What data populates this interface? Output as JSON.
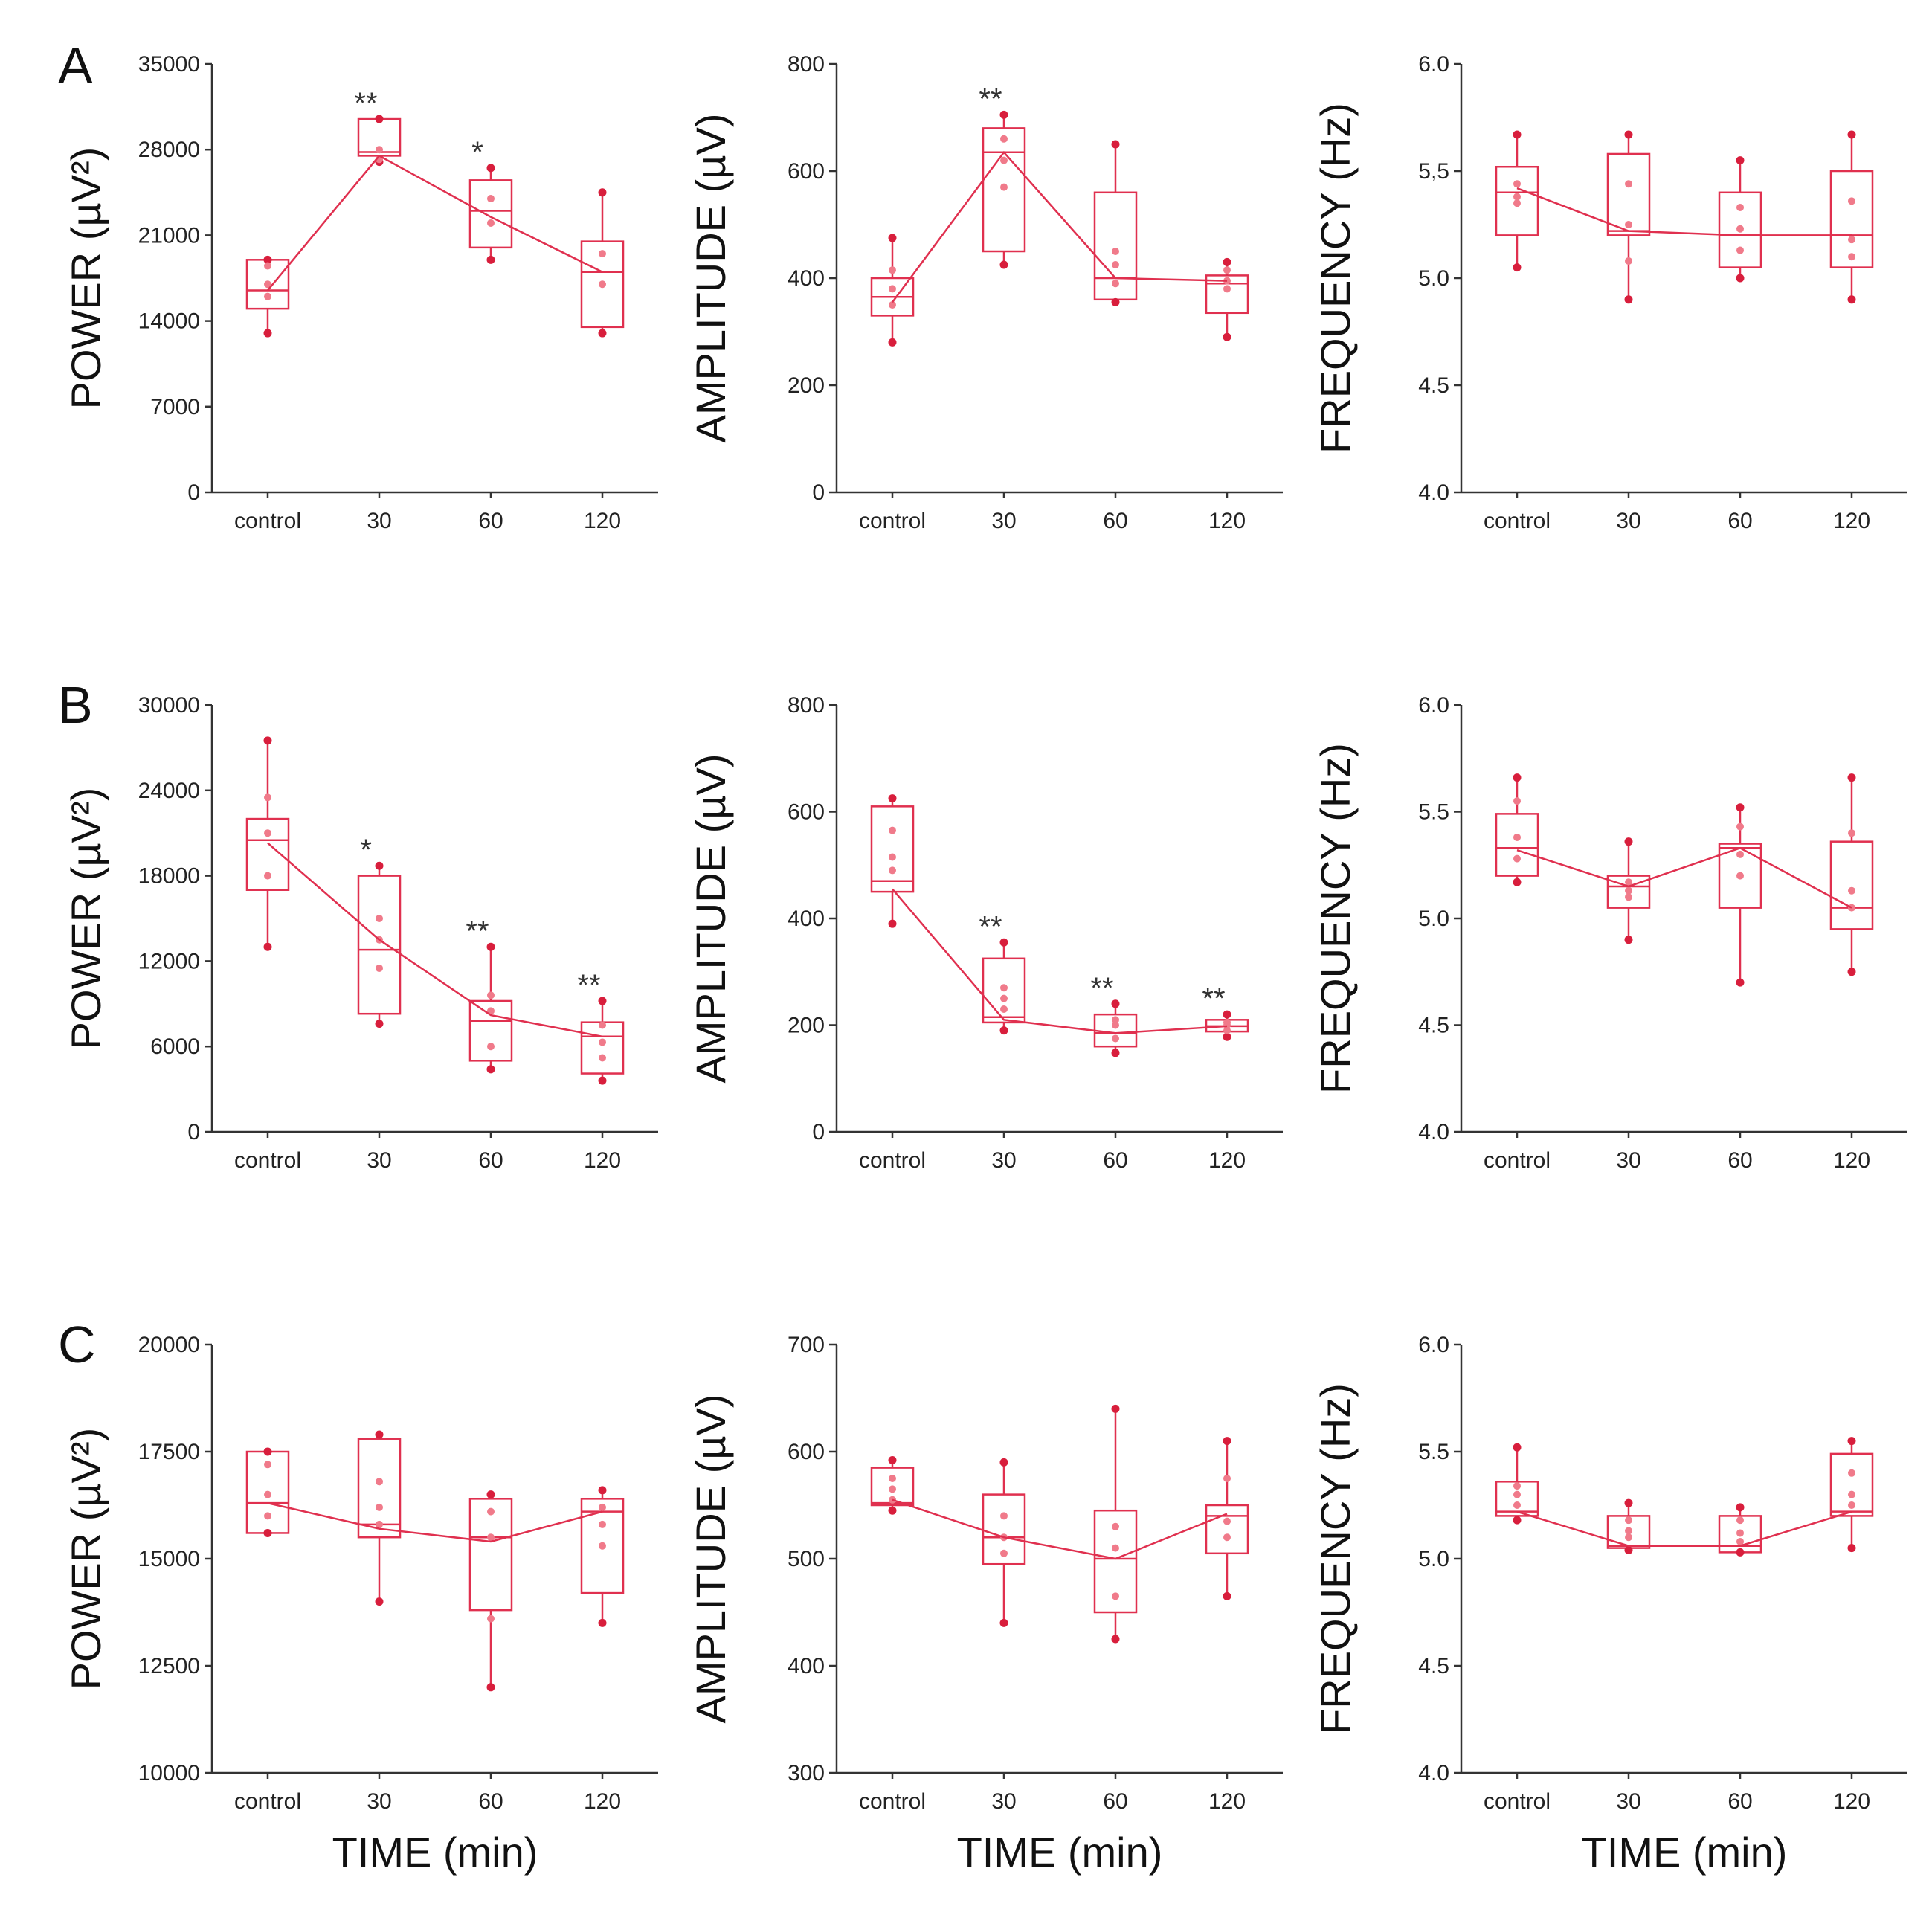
{
  "colors": {
    "accent": "#e0304f",
    "point": "#d81e3c",
    "inner_point": "#f07a8a",
    "axis": "#333333"
  },
  "figure": {
    "x_axis_title": "TIME   (min)",
    "panel_letters": [
      "A",
      "B",
      "C"
    ]
  },
  "chart_data": [
    {
      "type": "box",
      "row": "A",
      "title": "",
      "ylabel": "POWER (µV²)",
      "xlabel": "",
      "categories": [
        "control",
        "30",
        "60",
        "120"
      ],
      "ylim": [
        0,
        35000
      ],
      "yticks": [
        "0",
        "7000",
        "14000",
        "21000",
        "28000",
        "35000"
      ],
      "boxes": [
        {
          "q1": 15000,
          "median": 16500,
          "q3": 19000,
          "whisker_low": 13000,
          "whisker_high": 19000,
          "points": [
            17000,
            18500,
            16000
          ],
          "sig": ""
        },
        {
          "q1": 27500,
          "median": 27800,
          "q3": 30500,
          "whisker_low": 27000,
          "whisker_high": 30500,
          "points": [
            27200,
            28000
          ],
          "sig": "**"
        },
        {
          "q1": 20000,
          "median": 23000,
          "q3": 25500,
          "whisker_low": 19000,
          "whisker_high": 26500,
          "points": [
            22000,
            24000
          ],
          "sig": "*"
        },
        {
          "q1": 13500,
          "median": 18000,
          "q3": 20500,
          "whisker_low": 13000,
          "whisker_high": 24500,
          "points": [
            17000,
            19500
          ],
          "sig": ""
        }
      ],
      "line": [
        16500,
        27500,
        22500,
        18000
      ]
    },
    {
      "type": "box",
      "row": "A",
      "title": "",
      "ylabel": "AMPLITUDE (µV)",
      "xlabel": "",
      "categories": [
        "control",
        "30",
        "60",
        "120"
      ],
      "ylim": [
        0,
        800
      ],
      "yticks": [
        "0",
        "200",
        "400",
        "600",
        "800"
      ],
      "boxes": [
        {
          "q1": 330,
          "median": 365,
          "q3": 400,
          "whisker_low": 280,
          "whisker_high": 475,
          "points": [
            350,
            380,
            415
          ],
          "sig": ""
        },
        {
          "q1": 450,
          "median": 635,
          "q3": 680,
          "whisker_low": 425,
          "whisker_high": 705,
          "points": [
            570,
            620,
            660
          ],
          "sig": "**"
        },
        {
          "q1": 360,
          "median": 400,
          "q3": 560,
          "whisker_low": 355,
          "whisker_high": 650,
          "points": [
            390,
            425,
            450
          ],
          "sig": ""
        },
        {
          "q1": 335,
          "median": 390,
          "q3": 405,
          "whisker_low": 290,
          "whisker_high": 430,
          "points": [
            380,
            395,
            415
          ],
          "sig": ""
        }
      ],
      "line": [
        355,
        635,
        400,
        395
      ]
    },
    {
      "type": "box",
      "row": "A",
      "title": "",
      "ylabel": "FREQUENCY (Hz)",
      "xlabel": "",
      "categories": [
        "control",
        "30",
        "60",
        "120"
      ],
      "ylim": [
        4.0,
        6.0
      ],
      "yticks": [
        "4.0",
        "4.5",
        "5.0",
        "5,5",
        "6.0"
      ],
      "boxes": [
        {
          "q1": 5.2,
          "median": 5.4,
          "q3": 5.52,
          "whisker_low": 5.05,
          "whisker_high": 5.67,
          "points": [
            5.35,
            5.38,
            5.44
          ],
          "sig": ""
        },
        {
          "q1": 5.2,
          "median": 5.22,
          "q3": 5.58,
          "whisker_low": 4.9,
          "whisker_high": 5.67,
          "points": [
            5.08,
            5.25,
            5.44
          ],
          "sig": ""
        },
        {
          "q1": 5.05,
          "median": 5.2,
          "q3": 5.4,
          "whisker_low": 5.0,
          "whisker_high": 5.55,
          "points": [
            5.13,
            5.23,
            5.33
          ],
          "sig": ""
        },
        {
          "q1": 5.05,
          "median": 5.2,
          "q3": 5.5,
          "whisker_low": 4.9,
          "whisker_high": 5.67,
          "points": [
            5.1,
            5.18,
            5.36
          ],
          "sig": ""
        }
      ],
      "line": [
        5.42,
        5.22,
        5.2,
        5.2
      ]
    },
    {
      "type": "box",
      "row": "B",
      "title": "",
      "ylabel": "POWER (µV²)",
      "xlabel": "",
      "categories": [
        "control",
        "30",
        "60",
        "120"
      ],
      "ylim": [
        0,
        30000
      ],
      "yticks": [
        "0",
        "6000",
        "12000",
        "18000",
        "24000",
        "30000"
      ],
      "boxes": [
        {
          "q1": 17000,
          "median": 20500,
          "q3": 22000,
          "whisker_low": 13000,
          "whisker_high": 27500,
          "points": [
            18000,
            21000,
            23500
          ],
          "sig": ""
        },
        {
          "q1": 8300,
          "median": 12800,
          "q3": 18000,
          "whisker_low": 7600,
          "whisker_high": 18700,
          "points": [
            11500,
            13500,
            15000
          ],
          "sig": "*"
        },
        {
          "q1": 5000,
          "median": 7800,
          "q3": 9200,
          "whisker_low": 4400,
          "whisker_high": 13000,
          "points": [
            6000,
            8500,
            9600
          ],
          "sig": "**"
        },
        {
          "q1": 4100,
          "median": 6700,
          "q3": 7700,
          "whisker_low": 3600,
          "whisker_high": 9200,
          "points": [
            5200,
            6300,
            7500
          ],
          "sig": "**"
        }
      ],
      "line": [
        20300,
        13500,
        8200,
        6700
      ]
    },
    {
      "type": "box",
      "row": "B",
      "title": "",
      "ylabel": "AMPLITUDE (µV)",
      "xlabel": "",
      "categories": [
        "control",
        "30",
        "60",
        "120"
      ],
      "ylim": [
        0,
        800
      ],
      "yticks": [
        "0",
        "200",
        "400",
        "600",
        "800"
      ],
      "boxes": [
        {
          "q1": 450,
          "median": 470,
          "q3": 610,
          "whisker_low": 390,
          "whisker_high": 625,
          "points": [
            490,
            565,
            515
          ],
          "sig": ""
        },
        {
          "q1": 205,
          "median": 215,
          "q3": 325,
          "whisker_low": 190,
          "whisker_high": 355,
          "points": [
            230,
            250,
            270
          ],
          "sig": "**"
        },
        {
          "q1": 160,
          "median": 185,
          "q3": 220,
          "whisker_low": 148,
          "whisker_high": 240,
          "points": [
            175,
            200,
            210
          ],
          "sig": "**"
        },
        {
          "q1": 188,
          "median": 198,
          "q3": 210,
          "whisker_low": 178,
          "whisker_high": 220,
          "points": [
            190,
            200,
            205
          ],
          "sig": "**"
        }
      ],
      "line": [
        455,
        210,
        185,
        198
      ]
    },
    {
      "type": "box",
      "row": "B",
      "title": "",
      "ylabel": "FREQUENCY (Hz)",
      "xlabel": "",
      "categories": [
        "control",
        "30",
        "60",
        "120"
      ],
      "ylim": [
        4.0,
        6.0
      ],
      "yticks": [
        "4.0",
        "4.5",
        "5.0",
        "5.5",
        "6.0"
      ],
      "boxes": [
        {
          "q1": 5.2,
          "median": 5.33,
          "q3": 5.49,
          "whisker_low": 5.17,
          "whisker_high": 5.66,
          "points": [
            5.28,
            5.38,
            5.55
          ],
          "sig": ""
        },
        {
          "q1": 5.05,
          "median": 5.15,
          "q3": 5.2,
          "whisker_low": 4.9,
          "whisker_high": 5.36,
          "points": [
            5.1,
            5.13,
            5.17
          ],
          "sig": ""
        },
        {
          "q1": 5.05,
          "median": 5.33,
          "q3": 5.35,
          "whisker_low": 4.7,
          "whisker_high": 5.52,
          "points": [
            5.2,
            5.3,
            5.43
          ],
          "sig": ""
        },
        {
          "q1": 4.95,
          "median": 5.05,
          "q3": 5.36,
          "whisker_low": 4.75,
          "whisker_high": 5.66,
          "points": [
            5.05,
            5.13,
            5.4
          ],
          "sig": ""
        }
      ],
      "line": [
        5.32,
        5.15,
        5.33,
        5.05
      ]
    },
    {
      "type": "box",
      "row": "C",
      "title": "",
      "ylabel": "POWER (µV²)",
      "xlabel": "TIME   (min)",
      "categories": [
        "control",
        "30",
        "60",
        "120"
      ],
      "ylim": [
        10000,
        20000
      ],
      "yticks": [
        "10000",
        "12500",
        "15000",
        "17500",
        "20000"
      ],
      "boxes": [
        {
          "q1": 15600,
          "median": 16300,
          "q3": 17500,
          "whisker_low": 15600,
          "whisker_high": 17500,
          "points": [
            16000,
            16500,
            17200
          ],
          "sig": ""
        },
        {
          "q1": 15500,
          "median": 15800,
          "q3": 17800,
          "whisker_low": 14000,
          "whisker_high": 17900,
          "points": [
            15800,
            16200,
            16800
          ],
          "sig": ""
        },
        {
          "q1": 13800,
          "median": 15500,
          "q3": 16400,
          "whisker_low": 12000,
          "whisker_high": 16500,
          "points": [
            13600,
            15500,
            16100
          ],
          "sig": ""
        },
        {
          "q1": 14200,
          "median": 16100,
          "q3": 16400,
          "whisker_low": 13500,
          "whisker_high": 16600,
          "points": [
            15300,
            15800,
            16200
          ],
          "sig": ""
        }
      ],
      "line": [
        16300,
        15700,
        15400,
        16100
      ]
    },
    {
      "type": "box",
      "row": "C",
      "title": "",
      "ylabel": "AMPLITUDE (µV)",
      "xlabel": "TIME   (min)",
      "categories": [
        "control",
        "30",
        "60",
        "120"
      ],
      "ylim": [
        300,
        700
      ],
      "yticks": [
        "300",
        "400",
        "500",
        "600",
        "700"
      ],
      "boxes": [
        {
          "q1": 550,
          "median": 552,
          "q3": 585,
          "whisker_low": 545,
          "whisker_high": 592,
          "points": [
            555,
            565,
            575
          ],
          "sig": ""
        },
        {
          "q1": 495,
          "median": 520,
          "q3": 560,
          "whisker_low": 440,
          "whisker_high": 590,
          "points": [
            505,
            520,
            540
          ],
          "sig": ""
        },
        {
          "q1": 450,
          "median": 500,
          "q3": 545,
          "whisker_low": 425,
          "whisker_high": 640,
          "points": [
            465,
            510,
            530
          ],
          "sig": ""
        },
        {
          "q1": 505,
          "median": 540,
          "q3": 550,
          "whisker_low": 465,
          "whisker_high": 610,
          "points": [
            520,
            535,
            575
          ],
          "sig": ""
        }
      ],
      "line": [
        555,
        520,
        500,
        542
      ]
    },
    {
      "type": "box",
      "row": "C",
      "title": "",
      "ylabel": "FREQUENCY (Hz)",
      "xlabel": "TIME   (min)",
      "categories": [
        "control",
        "30",
        "60",
        "120"
      ],
      "ylim": [
        4.0,
        6.0
      ],
      "yticks": [
        "4.0",
        "4.5",
        "5.0",
        "5.5",
        "6.0"
      ],
      "boxes": [
        {
          "q1": 5.2,
          "median": 5.22,
          "q3": 5.36,
          "whisker_low": 5.18,
          "whisker_high": 5.52,
          "points": [
            5.25,
            5.3,
            5.34
          ],
          "sig": ""
        },
        {
          "q1": 5.05,
          "median": 5.06,
          "q3": 5.2,
          "whisker_low": 5.04,
          "whisker_high": 5.26,
          "points": [
            5.1,
            5.13,
            5.18
          ],
          "sig": ""
        },
        {
          "q1": 5.03,
          "median": 5.06,
          "q3": 5.2,
          "whisker_low": 5.03,
          "whisker_high": 5.24,
          "points": [
            5.08,
            5.12,
            5.18
          ],
          "sig": ""
        },
        {
          "q1": 5.2,
          "median": 5.22,
          "q3": 5.49,
          "whisker_low": 5.05,
          "whisker_high": 5.55,
          "points": [
            5.25,
            5.3,
            5.4
          ],
          "sig": ""
        }
      ],
      "line": [
        5.22,
        5.06,
        5.06,
        5.22
      ]
    }
  ]
}
